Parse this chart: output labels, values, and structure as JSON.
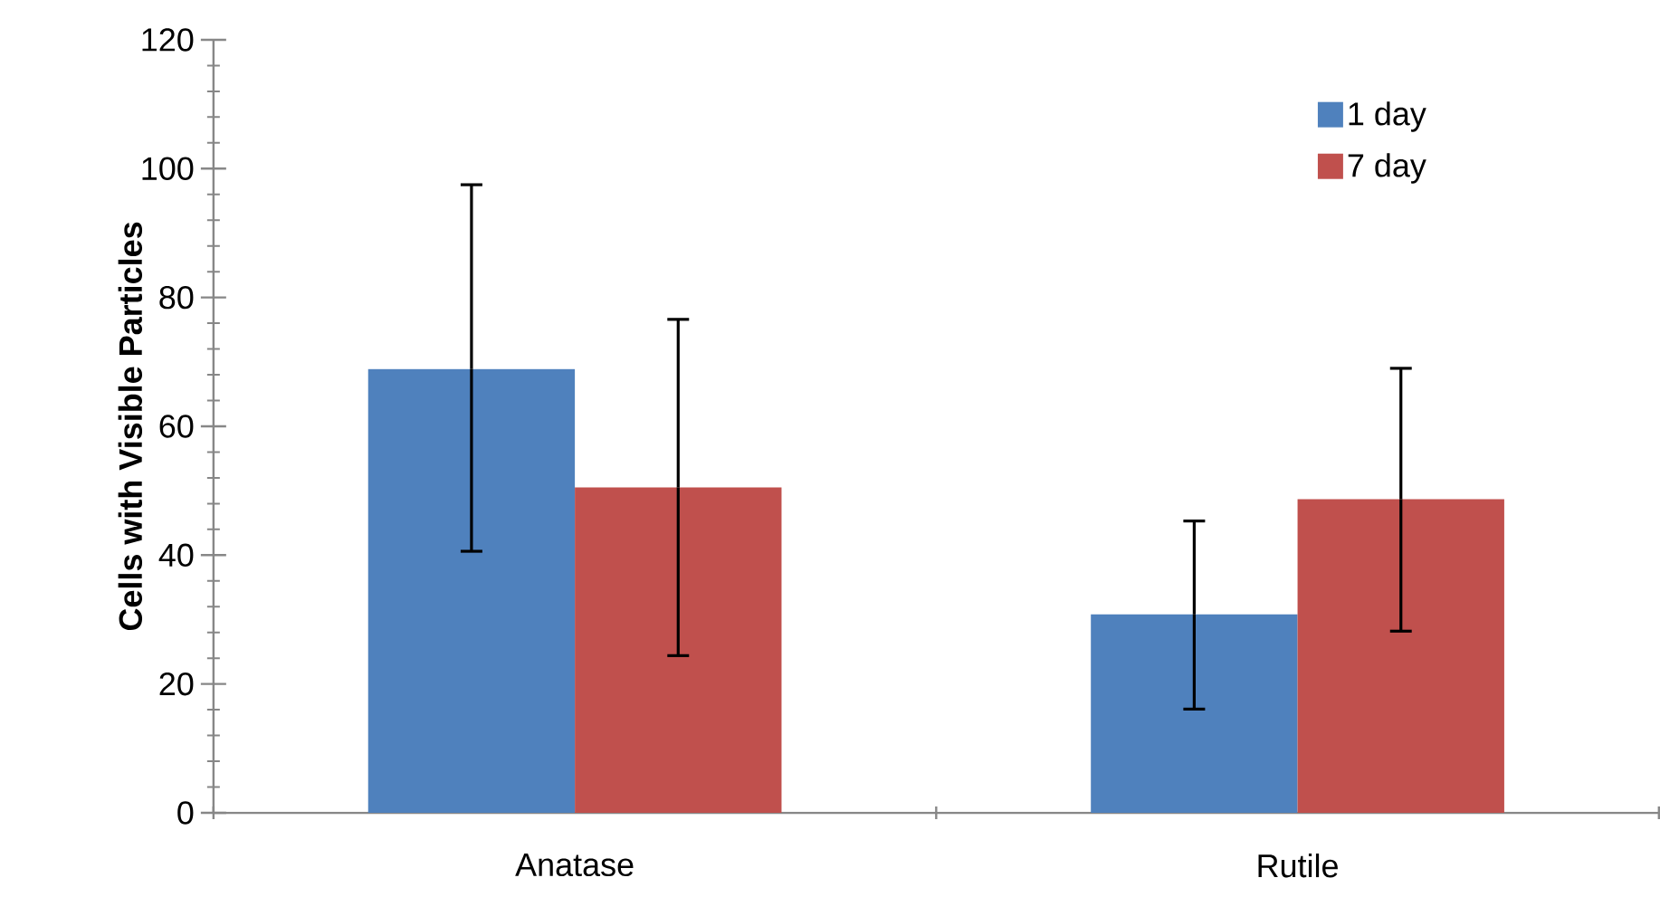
{
  "chart_data": {
    "type": "bar",
    "ylabel": "Cells with Visible Particles",
    "categories": [
      "Anatase",
      "Rutile"
    ],
    "series": [
      {
        "name": "1 day",
        "color": "#4f81bd",
        "values": [
          68.9,
          30.8
        ],
        "errors": [
          [
            40.6,
            97.5
          ],
          [
            16.1,
            45.3
          ]
        ]
      },
      {
        "name": "7 day",
        "color": "#c0504d",
        "values": [
          50.5,
          48.7
        ],
        "errors": [
          [
            24.4,
            76.6
          ],
          [
            28.2,
            69.0
          ]
        ]
      }
    ],
    "ylim": [
      0,
      120
    ],
    "yticks": [
      0,
      20,
      40,
      60,
      80,
      100,
      120
    ],
    "grid": false,
    "legend": "top right"
  }
}
